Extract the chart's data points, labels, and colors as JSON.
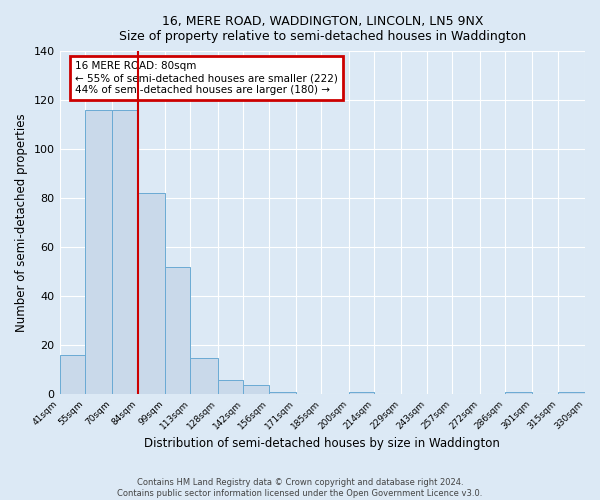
{
  "title_line1": "16, MERE ROAD, WADDINGTON, LINCOLN, LN5 9NX",
  "title_line2": "Size of property relative to semi-detached houses in Waddington",
  "xlabel": "Distribution of semi-detached houses by size in Waddington",
  "ylabel": "Number of semi-detached properties",
  "bin_edges": [
    41,
    55,
    70,
    84,
    99,
    113,
    128,
    142,
    156,
    171,
    185,
    200,
    214,
    229,
    243,
    257,
    272,
    286,
    301,
    315,
    330
  ],
  "bar_heights": [
    16,
    116,
    116,
    82,
    52,
    15,
    6,
    4,
    1,
    0,
    0,
    1,
    0,
    0,
    0,
    0,
    0,
    1,
    0,
    1
  ],
  "bar_color": "#c9d9ea",
  "bar_edge_color": "#6aaad4",
  "property_bin_edge": 84,
  "red_line_color": "#cc0000",
  "annotation_text_line1": "16 MERE ROAD: 80sqm",
  "annotation_text_line2": "← 55% of semi-detached houses are smaller (222)",
  "annotation_text_line3": "44% of semi-detached houses are larger (180) →",
  "annotation_box_color": "#cc0000",
  "ylim": [
    0,
    140
  ],
  "yticks": [
    0,
    20,
    40,
    60,
    80,
    100,
    120,
    140
  ],
  "footnote1": "Contains HM Land Registry data © Crown copyright and database right 2024.",
  "footnote2": "Contains public sector information licensed under the Open Government Licence v3.0.",
  "background_color": "#dce9f5",
  "plot_bg_color": "#dce9f5",
  "grid_color": "#ffffff",
  "tick_labels": [
    "41sqm",
    "55sqm",
    "70sqm",
    "84sqm",
    "99sqm",
    "113sqm",
    "128sqm",
    "142sqm",
    "156sqm",
    "171sqm",
    "185sqm",
    "200sqm",
    "214sqm",
    "229sqm",
    "243sqm",
    "257sqm",
    "272sqm",
    "286sqm",
    "301sqm",
    "315sqm",
    "330sqm"
  ]
}
